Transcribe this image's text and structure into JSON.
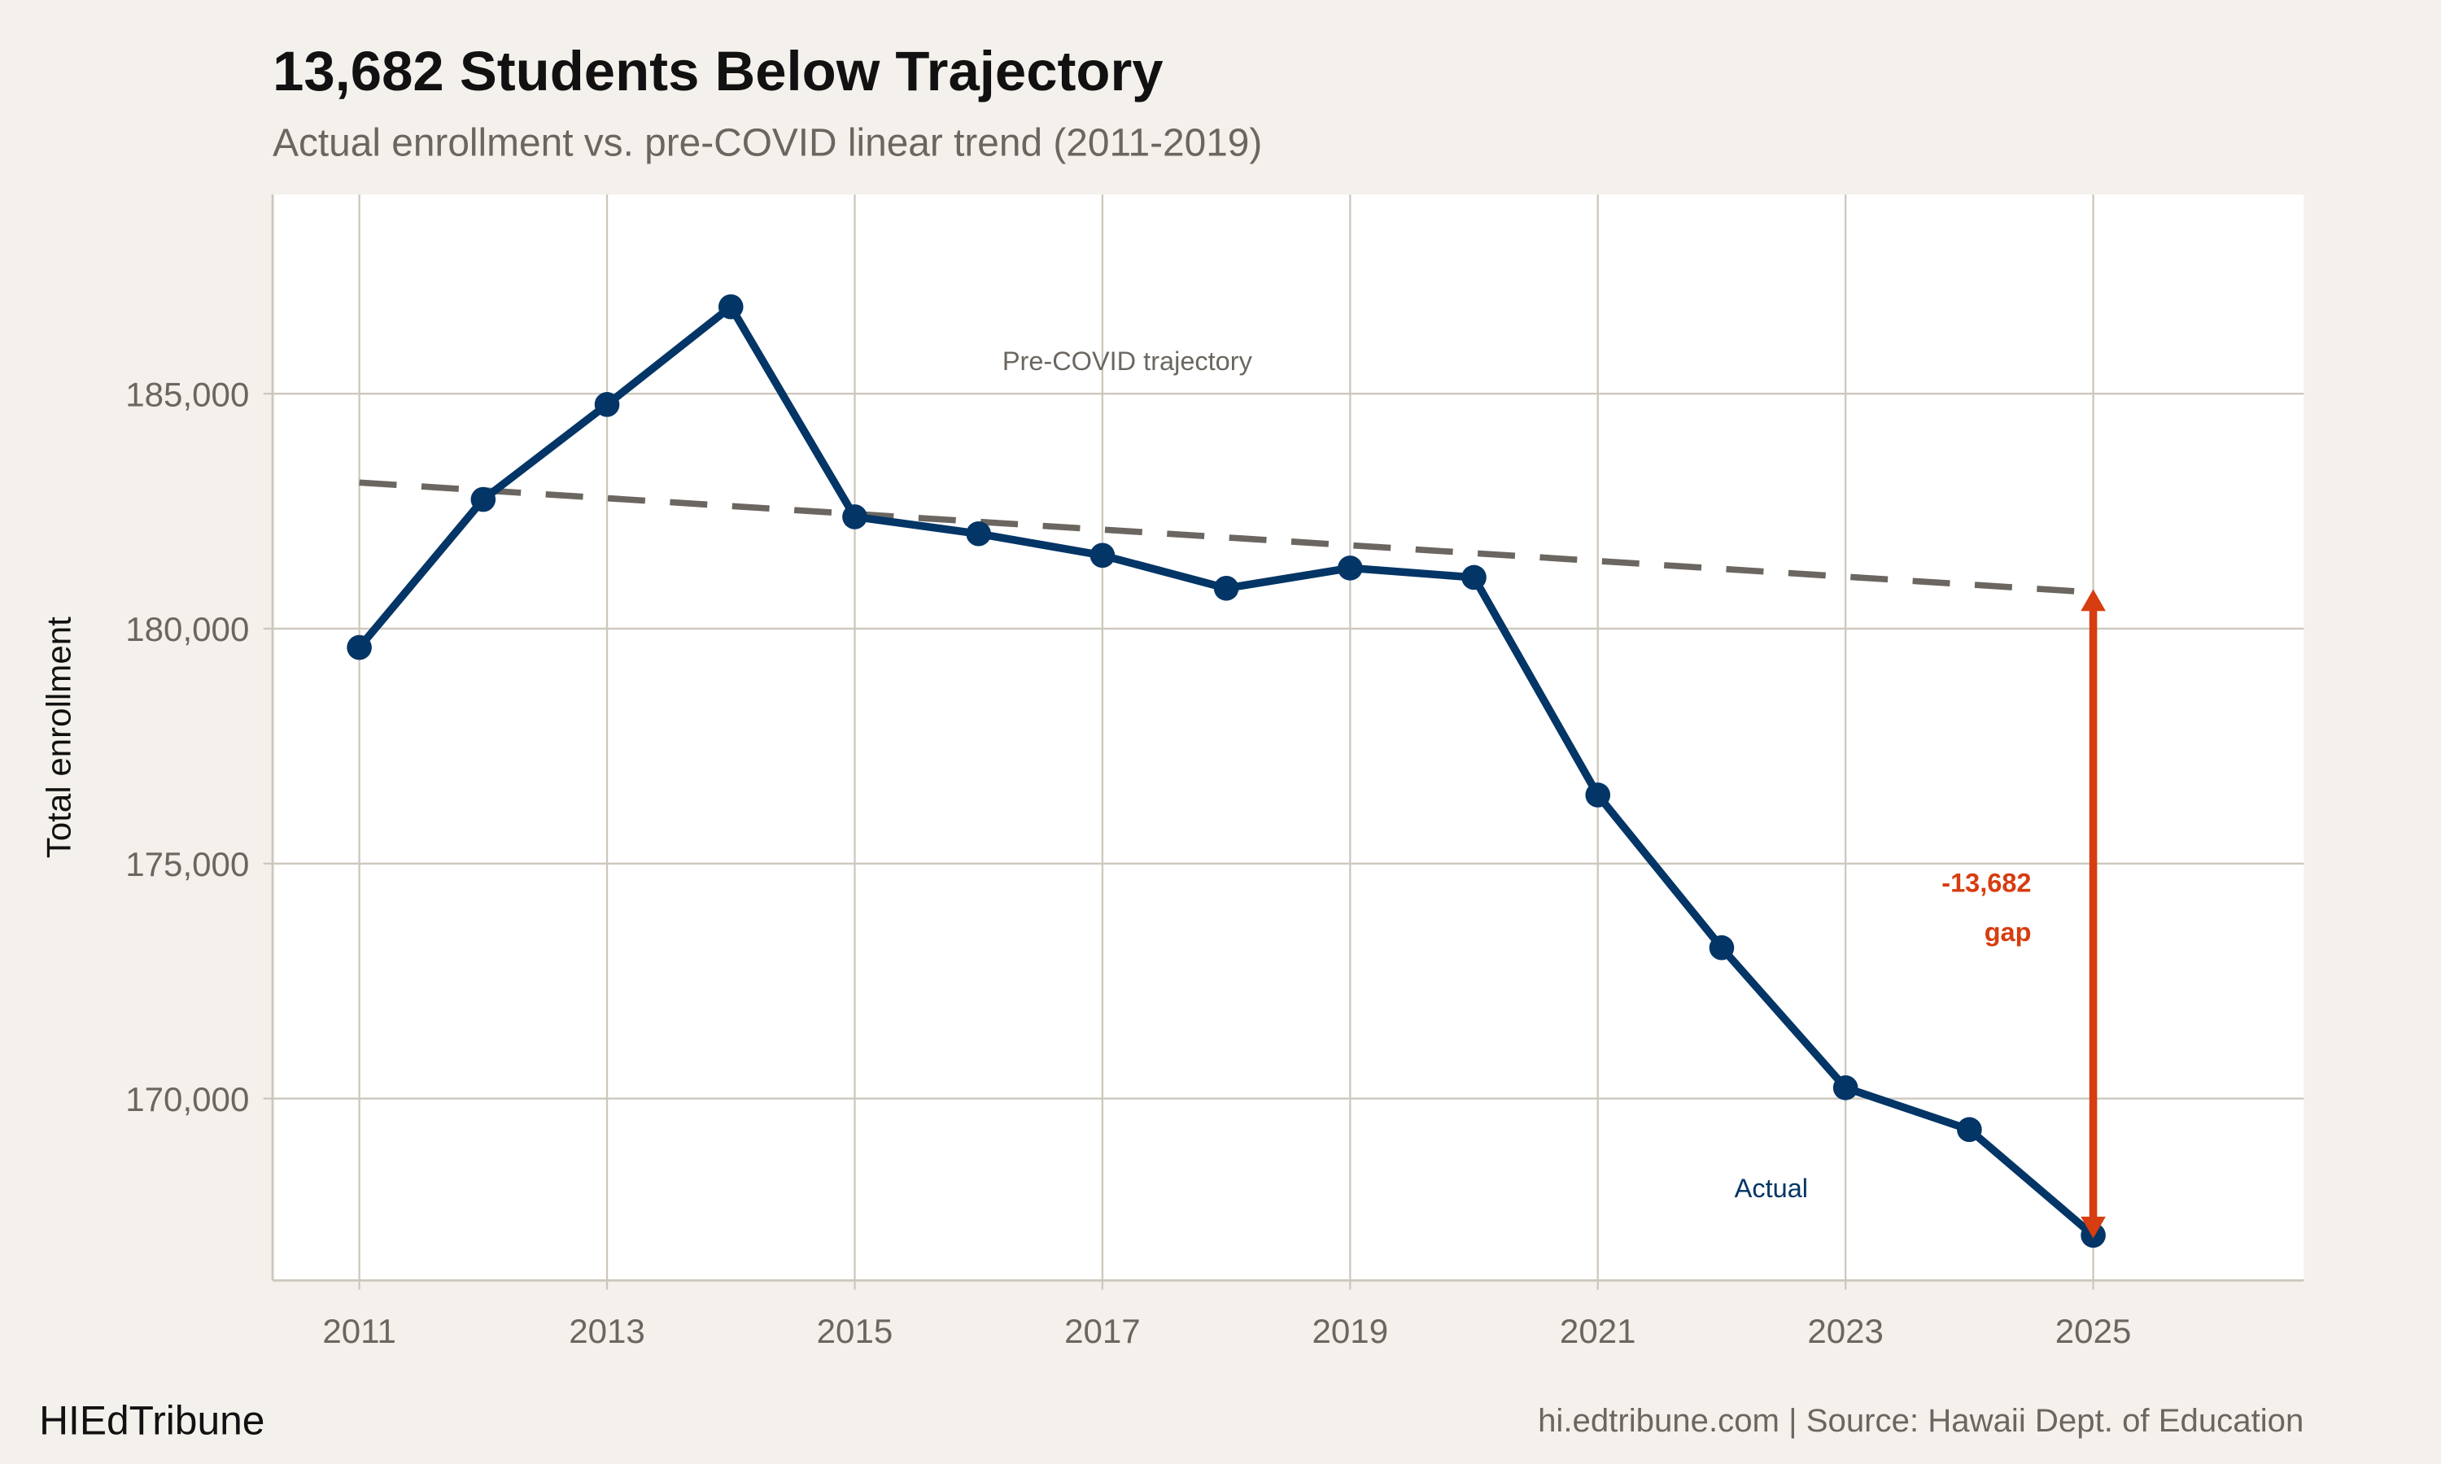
{
  "title": "13,682 Students Below Trajectory",
  "subtitle": "Actual enrollment vs. pre-COVID linear trend (2011-2019)",
  "brand": "HIEdTribune",
  "caption": "hi.edtribune.com | Source: Hawaii Dept. of Education",
  "colors": {
    "background": "#f4f1ec",
    "panel": "#ffffff",
    "grid": "#cdc7bd",
    "actual": "#033566",
    "trend": "#6b6660",
    "gap": "#d63d10"
  },
  "chart_data": {
    "type": "line",
    "xlabel": "",
    "ylabel": "Total enrollment",
    "xlim": [
      2010.3,
      2026.7
    ],
    "ylim": [
      166130,
      189240
    ],
    "x_ticks": [
      2011,
      2013,
      2015,
      2017,
      2019,
      2021,
      2023,
      2025
    ],
    "x_tick_labels": [
      "2011",
      "2013",
      "2015",
      "2017",
      "2019",
      "2021",
      "2023",
      "2025"
    ],
    "y_ticks": [
      170000,
      175000,
      180000,
      185000
    ],
    "y_tick_labels": [
      "170,000",
      "175,000",
      "180,000",
      "185,000"
    ],
    "grid": true,
    "legend": "none",
    "series": [
      {
        "name": "Actual",
        "style": "solid with points",
        "x": [
          2011,
          2012,
          2013,
          2014,
          2015,
          2016,
          2017,
          2018,
          2019,
          2020,
          2021,
          2022,
          2023,
          2024,
          2025
        ],
        "y": [
          179600,
          182750,
          184770,
          186850,
          182380,
          182020,
          181560,
          180860,
          181290,
          181090,
          176460,
          173210,
          170230,
          169340,
          167090
        ]
      },
      {
        "name": "Pre-COVID trajectory",
        "style": "dashed",
        "x": [
          2011,
          2025
        ],
        "y": [
          183110,
          180772
        ]
      }
    ],
    "annotations": [
      {
        "text": "Pre-COVID trajectory",
        "x": 2017.2,
        "y": 185500
      },
      {
        "text": "Actual",
        "x": 2022.4,
        "y": 167900
      },
      {
        "text": "-13,682",
        "x": 2024.5,
        "y": 174400
      },
      {
        "text": "gap",
        "x": 2024.5,
        "y": 173350
      }
    ],
    "gap_arrow": {
      "x": 2025,
      "from": 167090,
      "to": 180772,
      "value": -13682
    }
  }
}
